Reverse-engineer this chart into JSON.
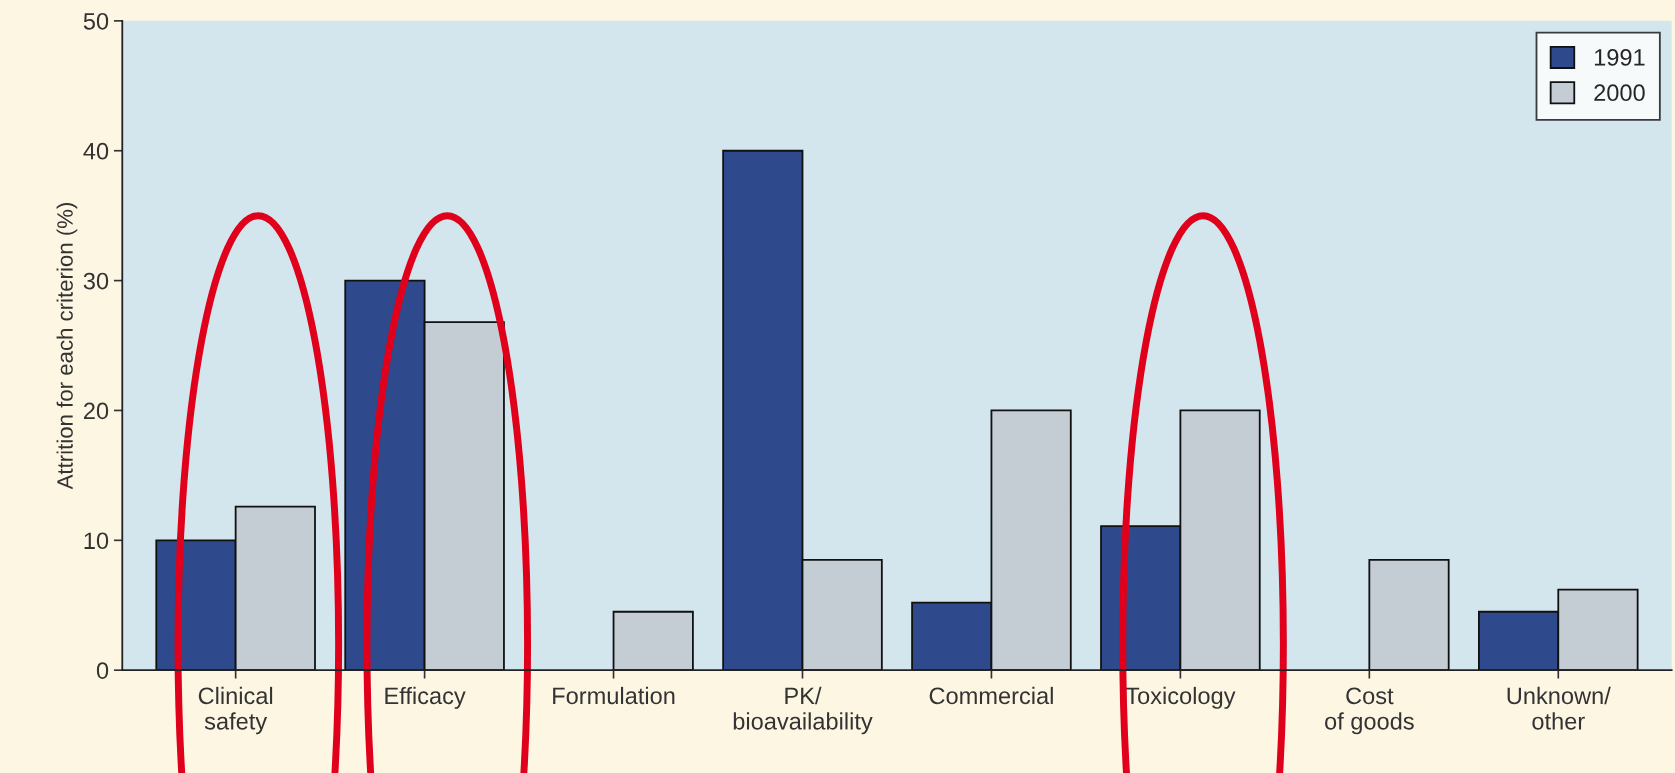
{
  "chart_data": {
    "type": "bar",
    "ylabel": "Attrition for each criterion (%)",
    "categories": [
      "Clinical\nsafety",
      "Efficacy",
      "Formulation",
      "PK/\nbioavailability",
      "Commercial",
      "Toxicology",
      "Cost\nof goods",
      "Unknown/\nother"
    ],
    "series": [
      {
        "name": "1991",
        "color": "#2e4a8c",
        "values": [
          10,
          30,
          null,
          40,
          5.2,
          11.1,
          null,
          4.5
        ]
      },
      {
        "name": "2000",
        "color": "#c4ccd4",
        "values": [
          12.6,
          26.8,
          4.5,
          8.5,
          20,
          20,
          8.5,
          6.2
        ]
      }
    ],
    "ylim": [
      0,
      50
    ],
    "yticks": [
      0,
      10,
      20,
      30,
      40,
      50
    ],
    "grid": false,
    "legend": "top right"
  }
}
